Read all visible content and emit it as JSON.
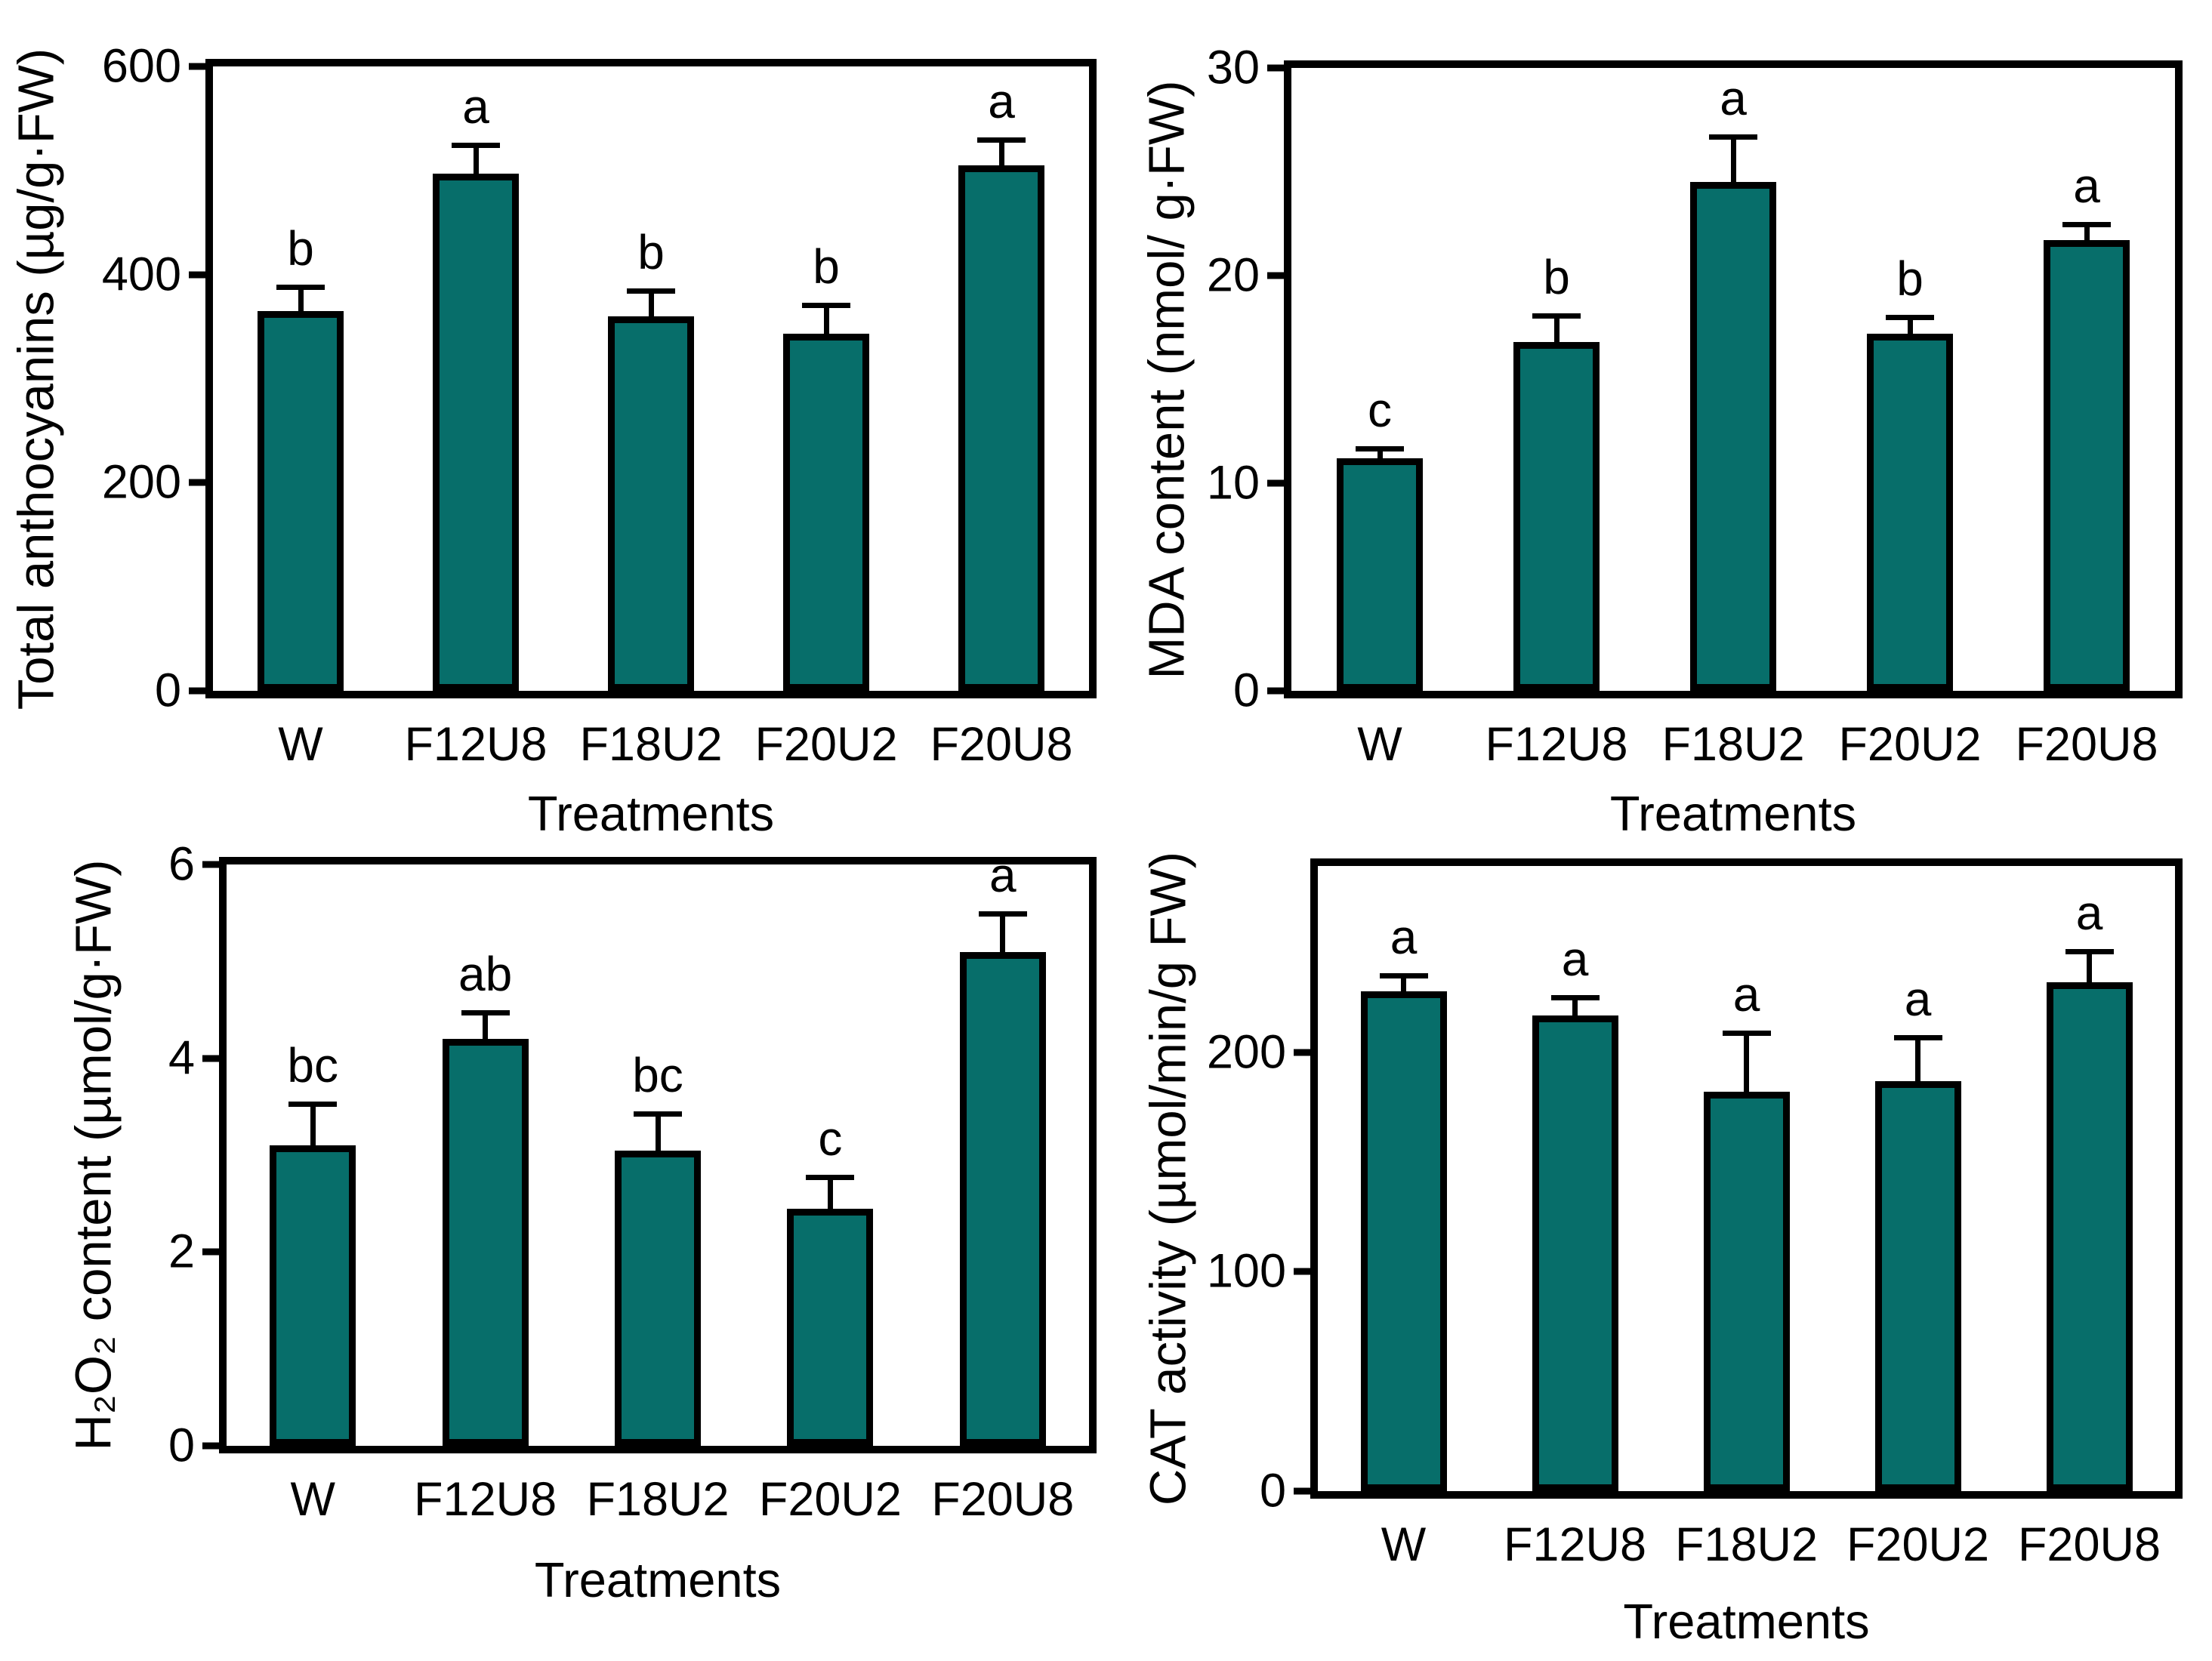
{
  "colors": {
    "bar_fill": "#076e6a",
    "bar_border": "#000000",
    "axis": "#000000",
    "background": "#ffffff"
  },
  "chart_data": [
    {
      "id": "total-anthocyanins",
      "type": "bar",
      "ylabel": "Total anthocyanins (µg/g·FW)",
      "xlabel": "Treatments",
      "categories": [
        "W",
        "F12U8",
        "F18U2",
        "F20U2",
        "F20U8"
      ],
      "values": [
        365,
        497,
        360,
        343,
        505
      ],
      "errors_plus": [
        25,
        30,
        27,
        30,
        27
      ],
      "sig_letters": [
        "b",
        "a",
        "b",
        "b",
        "a"
      ],
      "ylim": [
        0,
        600
      ],
      "yticks": [
        0,
        200,
        400,
        600
      ],
      "grid": false,
      "legend": "none",
      "bar_color": "#076e6a"
    },
    {
      "id": "mda-content",
      "type": "bar",
      "ylabel": "MDA content (nmol/ g·FW)",
      "xlabel": "Treatments",
      "categories": [
        "W",
        "F12U8",
        "F18U2",
        "F20U2",
        "F20U8"
      ],
      "values": [
        11.2,
        16.8,
        24.5,
        17.2,
        21.7
      ],
      "errors_plus": [
        0.6,
        1.4,
        2.3,
        0.9,
        0.9
      ],
      "sig_letters": [
        "c",
        "b",
        "a",
        "b",
        "a"
      ],
      "ylim": [
        0,
        30
      ],
      "yticks": [
        0,
        10,
        20,
        30
      ],
      "grid": false,
      "legend": "none",
      "bar_color": "#076e6a"
    },
    {
      "id": "h2o2-content",
      "type": "bar",
      "ylabel": "H₂O₂ content (µmol/g·FW)",
      "xlabel": "Treatments",
      "categories": [
        "W",
        "F12U8",
        "F18U2",
        "F20U2",
        "F20U8"
      ],
      "values": [
        3.1,
        4.2,
        3.05,
        2.45,
        5.1
      ],
      "errors_plus": [
        0.45,
        0.3,
        0.4,
        0.35,
        0.42
      ],
      "sig_letters": [
        "bc",
        "ab",
        "bc",
        "c",
        "a"
      ],
      "ylim": [
        0,
        6
      ],
      "yticks": [
        0,
        2,
        4,
        6
      ],
      "grid": false,
      "legend": "none",
      "bar_color": "#076e6a"
    },
    {
      "id": "cat-activity",
      "type": "bar",
      "ylabel": "CAT activity (µmol/min/g FW)",
      "xlabel": "Treatments",
      "categories": [
        "W",
        "F12U8",
        "F18U2",
        "F20U2",
        "F20U8"
      ],
      "values": [
        228,
        217,
        182,
        187,
        232
      ],
      "errors_plus": [
        8,
        9,
        28,
        21,
        15
      ],
      "sig_letters": [
        "a",
        "a",
        "a",
        "a",
        "a"
      ],
      "ylim": [
        0,
        285
      ],
      "yticks": [
        0,
        100,
        200
      ],
      "grid": false,
      "legend": "none",
      "bar_color": "#076e6a"
    }
  ]
}
